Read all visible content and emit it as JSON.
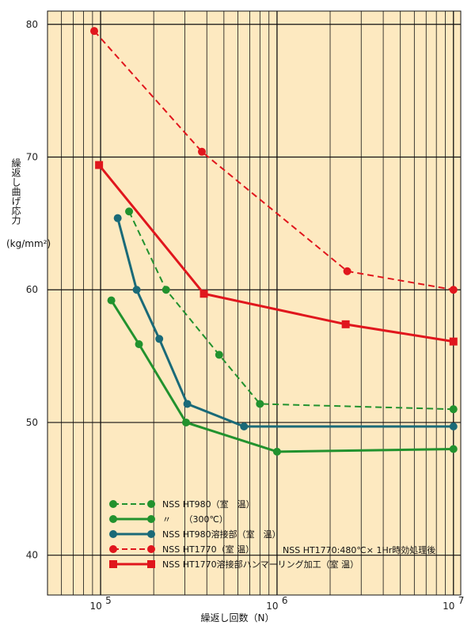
{
  "chart_data": {
    "type": "line",
    "xlabel": "繰返し回数（N）",
    "ylabel": "繰返し曲げ応力",
    "yunit": "(kg/mm²)",
    "xscale": "log",
    "xlim": [
      50000,
      11000000
    ],
    "ylim": [
      37,
      81
    ],
    "xticks": [
      {
        "value": 100000,
        "base": "10",
        "exp": "5"
      },
      {
        "value": 1000000,
        "base": "10",
        "exp": "6"
      },
      {
        "value": 10000000,
        "base": "10",
        "exp": "7"
      }
    ],
    "yticks": [
      40,
      50,
      60,
      70,
      80
    ],
    "grid": true,
    "background": "#fde9c0",
    "note": "NSS HT1770:480℃× 1Hr時効処理後",
    "series": [
      {
        "name": "NSS HT980（室　温）",
        "color": "#22922e",
        "dash": true,
        "marker": "circle",
        "points": [
          [
            145000,
            65.9
          ],
          [
            235000,
            60.0
          ],
          [
            470000,
            55.1
          ],
          [
            800000,
            51.4
          ],
          [
            10000000,
            51.0
          ]
        ]
      },
      {
        "name": "〃　　（300℃）",
        "color": "#22922e",
        "dash": false,
        "marker": "circle",
        "points": [
          [
            115000,
            59.2
          ],
          [
            165000,
            55.9
          ],
          [
            305000,
            50.0
          ],
          [
            1000000,
            47.8
          ],
          [
            10000000,
            48.0
          ]
        ]
      },
      {
        "name": "NSS HT980溶接部（室　温）",
        "color": "#1a6a78",
        "dash": false,
        "marker": "circle",
        "points": [
          [
            125000,
            65.4
          ],
          [
            160000,
            60.0
          ],
          [
            215000,
            56.3
          ],
          [
            310000,
            51.4
          ],
          [
            650000,
            49.7
          ],
          [
            10000000,
            49.7
          ]
        ]
      },
      {
        "name": "NSS HT1770（室 温）",
        "color": "#e0161d",
        "dash": true,
        "marker": "circle",
        "points": [
          [
            92000,
            79.5
          ],
          [
            375000,
            70.4
          ],
          [
            2500000,
            61.4
          ],
          [
            10000000,
            60.0
          ]
        ]
      },
      {
        "name": "NSS HT1770溶接部ハンマーリング加工（室 温）",
        "color": "#e0161d",
        "dash": false,
        "marker": "square",
        "points": [
          [
            98000,
            69.4
          ],
          [
            385000,
            59.7
          ],
          [
            2450000,
            57.4
          ],
          [
            10000000,
            56.1
          ]
        ]
      }
    ]
  }
}
